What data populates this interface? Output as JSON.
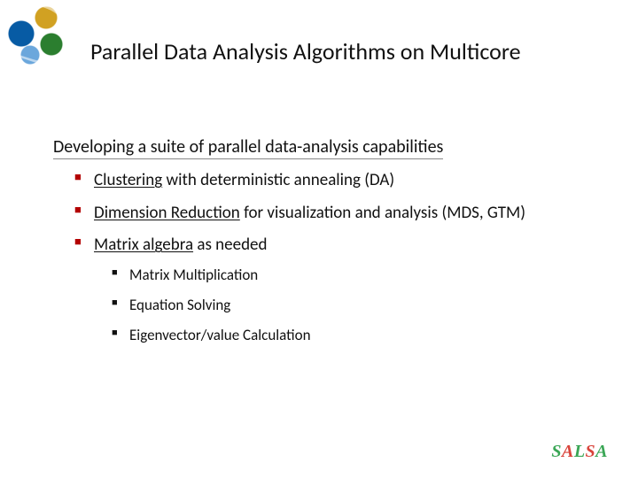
{
  "title": "Parallel Data Analysis Algorithms on Multicore",
  "subtitle": "Developing a suite of parallel data-analysis capabilities",
  "bullets": [
    {
      "term": "Clustering",
      "rest": " with deterministic annealing (DA)"
    },
    {
      "term": "Dimension Reduction",
      "rest": " for visualization and analysis (MDS, GTM)"
    },
    {
      "term": "Matrix algebra",
      "rest": " as needed"
    }
  ],
  "sub_bullets": [
    "Matrix Multiplication",
    "Equation Solving",
    "Eigenvector/value Calculation"
  ],
  "brand": {
    "s": "S",
    "a1": "A",
    "l": "L",
    "s2": "S",
    "a2": "A"
  },
  "colors": {
    "bullet_accent": "#b30000",
    "brand_green": "#3aa655",
    "brand_red": "#d9443b"
  }
}
